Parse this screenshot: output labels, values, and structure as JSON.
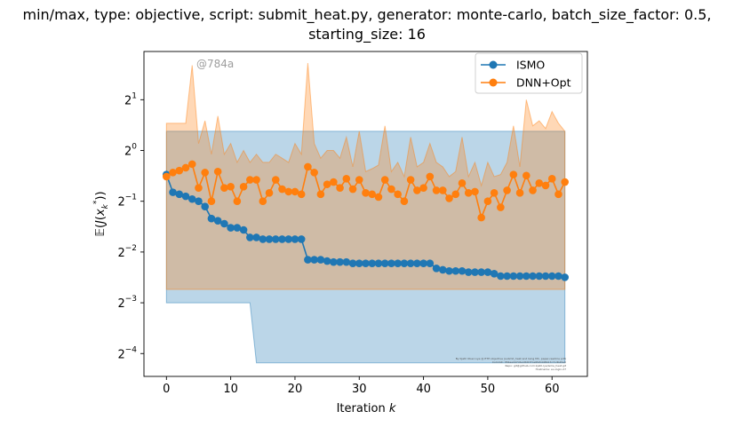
{
  "chart_data": {
    "type": "line",
    "title_lines": [
      "min/max, type: objective, script: submit_heat.py, generator: monte-carlo, batch_size_factor: 0.5,",
      "starting_size: 16"
    ],
    "xlabel": "Iteration k",
    "ylabel": "E(J(x_k*))",
    "xlim": [
      -3.5,
      65.5
    ],
    "ylim_log2": [
      -4.45,
      1.95
    ],
    "y_scale": "log2",
    "x_ticks": [
      0,
      10,
      20,
      30,
      40,
      50,
      60
    ],
    "x_tick_labels": [
      "0",
      "10",
      "20",
      "30",
      "40",
      "50",
      "60"
    ],
    "y_ticks_log2": [
      -4,
      -3,
      -2,
      -1,
      0,
      1
    ],
    "y_tick_bases": [
      "2",
      "2",
      "2",
      "2",
      "2",
      "2"
    ],
    "y_tick_exponents": [
      "−4",
      "−3",
      "−2",
      "−1",
      "0",
      "1"
    ],
    "grid": false,
    "legend_position": "top-right",
    "annotation": "@784a",
    "fine_print_lines": [
      "By Kjetil Olsen Lye @ ETH objective (submit_heat and Ising MC, paper-readme pdf)",
      "Commit: 784aed47c6e18d1f7ce6fa5448b17c7cdb45e0",
      "Repo: git@github.com:kjetil-lye/isme_heat.git",
      "Hostname: eu-login-27"
    ],
    "series": [
      {
        "name": "ISMO",
        "color": "#1f77b4",
        "x": [
          0,
          1,
          2,
          3,
          4,
          5,
          6,
          7,
          8,
          9,
          10,
          11,
          12,
          13,
          14,
          15,
          16,
          17,
          18,
          19,
          20,
          21,
          22,
          23,
          24,
          25,
          26,
          27,
          28,
          29,
          30,
          31,
          32,
          33,
          34,
          35,
          36,
          37,
          38,
          39,
          40,
          41,
          42,
          43,
          44,
          45,
          46,
          47,
          48,
          49,
          50,
          51,
          52,
          53,
          54,
          55,
          56,
          57,
          58,
          59,
          60,
          61,
          62
        ],
        "values": [
          0.72,
          0.565,
          0.55,
          0.535,
          0.515,
          0.5,
          0.465,
          0.395,
          0.383,
          0.368,
          0.348,
          0.348,
          0.338,
          0.305,
          0.305,
          0.298,
          0.298,
          0.298,
          0.298,
          0.298,
          0.298,
          0.298,
          0.225,
          0.225,
          0.225,
          0.221,
          0.218,
          0.218,
          0.218,
          0.214,
          0.214,
          0.214,
          0.214,
          0.214,
          0.214,
          0.214,
          0.214,
          0.214,
          0.214,
          0.214,
          0.214,
          0.214,
          0.2,
          0.196,
          0.193,
          0.193,
          0.193,
          0.19,
          0.19,
          0.19,
          0.19,
          0.186,
          0.18,
          0.18,
          0.18,
          0.18,
          0.18,
          0.18,
          0.18,
          0.18,
          0.18,
          0.18,
          0.177
        ],
        "band_lower": [
          0.125,
          0.125,
          0.125,
          0.125,
          0.125,
          0.125,
          0.125,
          0.125,
          0.125,
          0.125,
          0.125,
          0.125,
          0.125,
          0.125,
          0.055,
          0.055,
          0.055,
          0.055,
          0.055,
          0.055,
          0.055,
          0.055,
          0.055,
          0.055,
          0.055,
          0.055,
          0.055,
          0.055,
          0.055,
          0.055,
          0.055,
          0.055,
          0.055,
          0.055,
          0.055,
          0.055,
          0.055,
          0.055,
          0.055,
          0.055,
          0.055,
          0.055,
          0.055,
          0.055,
          0.055,
          0.055,
          0.055,
          0.055,
          0.055,
          0.055,
          0.055,
          0.055,
          0.055,
          0.055,
          0.055,
          0.055,
          0.055,
          0.055,
          0.055,
          0.055,
          0.055,
          0.055,
          0.055
        ],
        "band_upper": [
          1.3,
          1.3,
          1.3,
          1.3,
          1.3,
          1.3,
          1.3,
          1.3,
          1.3,
          1.3,
          1.3,
          1.3,
          1.3,
          1.3,
          1.3,
          1.3,
          1.3,
          1.3,
          1.3,
          1.3,
          1.3,
          1.3,
          1.3,
          1.3,
          1.3,
          1.3,
          1.3,
          1.3,
          1.3,
          1.3,
          1.3,
          1.3,
          1.3,
          1.3,
          1.3,
          1.3,
          1.3,
          1.3,
          1.3,
          1.3,
          1.3,
          1.3,
          1.3,
          1.3,
          1.3,
          1.3,
          1.3,
          1.3,
          1.3,
          1.3,
          1.3,
          1.3,
          1.3,
          1.3,
          1.3,
          1.3,
          1.3,
          1.3,
          1.3,
          1.3,
          1.3,
          1.3,
          1.3
        ]
      },
      {
        "name": "DNN+Opt",
        "color": "#ff7f0e",
        "x": [
          0,
          1,
          2,
          3,
          4,
          5,
          6,
          7,
          8,
          9,
          10,
          11,
          12,
          13,
          14,
          15,
          16,
          17,
          18,
          19,
          20,
          21,
          22,
          23,
          24,
          25,
          26,
          27,
          28,
          29,
          30,
          31,
          32,
          33,
          34,
          35,
          36,
          37,
          38,
          39,
          40,
          41,
          42,
          43,
          44,
          45,
          46,
          47,
          48,
          49,
          50,
          51,
          52,
          53,
          54,
          55,
          56,
          57,
          58,
          59,
          60,
          61,
          62
        ],
        "values": [
          0.7,
          0.74,
          0.76,
          0.79,
          0.83,
          0.6,
          0.74,
          0.5,
          0.75,
          0.6,
          0.61,
          0.5,
          0.61,
          0.67,
          0.67,
          0.5,
          0.56,
          0.67,
          0.59,
          0.57,
          0.57,
          0.55,
          0.8,
          0.74,
          0.55,
          0.63,
          0.65,
          0.6,
          0.68,
          0.59,
          0.67,
          0.56,
          0.55,
          0.53,
          0.67,
          0.59,
          0.55,
          0.5,
          0.67,
          0.58,
          0.6,
          0.7,
          0.58,
          0.58,
          0.52,
          0.55,
          0.64,
          0.56,
          0.57,
          0.4,
          0.5,
          0.56,
          0.46,
          0.58,
          0.72,
          0.56,
          0.71,
          0.58,
          0.64,
          0.62,
          0.68,
          0.55,
          0.65
        ],
        "band_lower": [
          0.15,
          0.15,
          0.15,
          0.15,
          0.15,
          0.15,
          0.15,
          0.15,
          0.15,
          0.15,
          0.15,
          0.15,
          0.15,
          0.15,
          0.15,
          0.15,
          0.15,
          0.15,
          0.15,
          0.15,
          0.15,
          0.15,
          0.15,
          0.15,
          0.15,
          0.15,
          0.15,
          0.15,
          0.15,
          0.15,
          0.15,
          0.15,
          0.15,
          0.15,
          0.15,
          0.15,
          0.15,
          0.15,
          0.15,
          0.15,
          0.15,
          0.15,
          0.15,
          0.15,
          0.15,
          0.15,
          0.15,
          0.15,
          0.15,
          0.15,
          0.15,
          0.15,
          0.15,
          0.15,
          0.15,
          0.15,
          0.15,
          0.15,
          0.15,
          0.15,
          0.15,
          0.15,
          0.15
        ],
        "band_upper": [
          1.45,
          1.45,
          1.45,
          1.45,
          3.2,
          1.1,
          1.5,
          0.95,
          1.6,
          0.95,
          1.1,
          0.85,
          1.0,
          0.85,
          0.95,
          0.85,
          0.85,
          0.95,
          0.9,
          0.85,
          1.1,
          0.95,
          3.3,
          1.1,
          0.9,
          1.0,
          1.0,
          0.9,
          1.2,
          0.8,
          1.3,
          0.75,
          0.78,
          0.82,
          1.4,
          0.75,
          0.85,
          0.7,
          1.2,
          0.8,
          0.85,
          1.1,
          0.85,
          0.8,
          0.7,
          0.75,
          1.2,
          0.7,
          0.85,
          0.62,
          0.85,
          0.7,
          0.72,
          0.85,
          1.4,
          0.8,
          2.0,
          1.4,
          1.5,
          1.35,
          1.7,
          1.45,
          1.3
        ]
      }
    ]
  }
}
